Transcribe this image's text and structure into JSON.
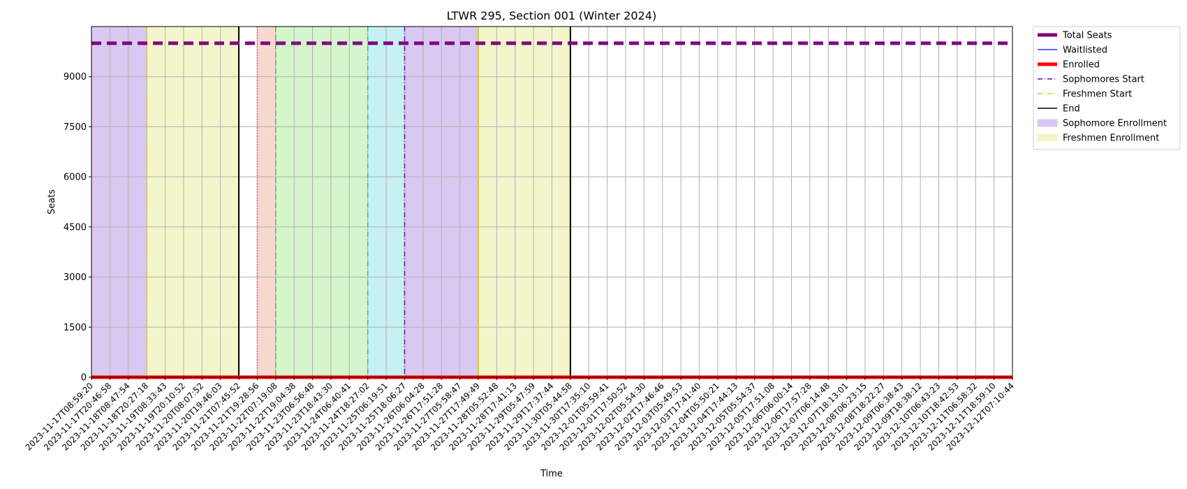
{
  "chart_data": {
    "type": "line",
    "title": "LTWR 295, Section 001 (Winter 2024)",
    "xlabel": "Time",
    "ylabel": "Seats",
    "ylim": [
      0,
      10500
    ],
    "yticks": [
      0,
      1500,
      3000,
      4500,
      6000,
      7500,
      9000
    ],
    "grid": true,
    "legend_position": "outside-right-top",
    "x": [
      "2023-11-17T08:59:20",
      "2023-11-17T20:46:58",
      "2023-11-18T08:47:54",
      "2023-11-18T20:27:18",
      "2023-11-19T08:33:43",
      "2023-11-19T20:10:52",
      "2023-11-20T08:07:52",
      "2023-11-20T19:46:03",
      "2023-11-21T07:45:52",
      "2023-11-21T19:28:56",
      "2023-11-22T07:19:08",
      "2023-11-22T19:04:38",
      "2023-11-23T06:56:48",
      "2023-11-23T18:43:30",
      "2023-11-24T06:40:41",
      "2023-11-24T18:27:02",
      "2023-11-25T06:19:51",
      "2023-11-25T18:06:27",
      "2023-11-26T06:04:28",
      "2023-11-26T17:51:28",
      "2023-11-27T05:58:47",
      "2023-11-27T17:49:49",
      "2023-11-28T05:52:48",
      "2023-11-28T17:41:13",
      "2023-11-29T05:47:59",
      "2023-11-29T17:37:44",
      "2023-11-30T05:44:58",
      "2023-11-30T17:35:10",
      "2023-12-01T05:59:41",
      "2023-12-01T17:50:52",
      "2023-12-02T05:54:30",
      "2023-12-02T17:46:46",
      "2023-12-03T05:49:53",
      "2023-12-03T17:41:40",
      "2023-12-04T05:50:21",
      "2023-12-04T17:44:13",
      "2023-12-05T05:54:37",
      "2023-12-05T17:51:08",
      "2023-12-06T06:00:14",
      "2023-12-06T17:57:28",
      "2023-12-07T06:14:48",
      "2023-12-07T18:13:01",
      "2023-12-08T06:23:15",
      "2023-12-08T18:22:27",
      "2023-12-09T06:38:43",
      "2023-12-09T18:38:12",
      "2023-12-10T06:43:23",
      "2023-12-10T18:42:53",
      "2023-12-11T06:58:32",
      "2023-12-11T18:59:10",
      "2023-12-12T07:10:44"
    ],
    "series": [
      {
        "name": "Total Seats",
        "color": "#800080",
        "style": "dashed-thick",
        "value": 10000
      },
      {
        "name": "Waitlisted",
        "color": "#3333ff",
        "style": "solid",
        "value": 0
      },
      {
        "name": "Enrolled",
        "color": "#ff0000",
        "style": "solid-thick",
        "value": 0
      }
    ],
    "start_lines": [
      {
        "name": "Sophomores Start",
        "color": "#6a0dad",
        "style": "dashdot"
      },
      {
        "name": "Freshmen Start",
        "color": "#cccc33",
        "style": "dashdot"
      },
      {
        "name": "End",
        "color": "#000000",
        "style": "solid"
      }
    ],
    "bands": [
      {
        "name": "Sophomore Enrollment",
        "color": "#d9c8f0",
        "from": "2023-11-17T08:59:20",
        "to": "2023-11-18T20:27:18"
      },
      {
        "name": "Freshmen Enrollment",
        "color": "#f5f5cc",
        "from": "2023-11-18T20:27:18",
        "to": "2023-11-21T07:45:52"
      },
      {
        "name": "",
        "color": "#f7d9d0",
        "from": "2023-11-21T19:28:56",
        "to": "2023-11-22T07:19:08"
      },
      {
        "name": "",
        "color": "#d5f5cc",
        "from": "2023-11-22T07:19:08",
        "to": "2023-11-24T18:27:02"
      },
      {
        "name": "",
        "color": "#c7f0f2",
        "from": "2023-11-24T18:27:02",
        "to": "2023-11-25T18:06:27"
      },
      {
        "name": "",
        "color": "#d9c8f0",
        "from": "2023-11-25T18:06:27",
        "to": "2023-11-27T17:49:49"
      },
      {
        "name": "",
        "color": "#f5f5cc",
        "from": "2023-11-27T17:49:49",
        "to": "2023-11-30T05:44:58"
      }
    ],
    "vlines": [
      {
        "at": "2023-11-18T20:27:18",
        "color": "#cccc33",
        "style": "dashdot"
      },
      {
        "at": "2023-11-21T07:45:52",
        "color": "#000000",
        "style": "solid"
      },
      {
        "at": "2023-11-21T19:28:56",
        "color": "#ff6666",
        "style": "dotted"
      },
      {
        "at": "2023-11-22T07:19:08",
        "color": "#33cc33",
        "style": "dashed"
      },
      {
        "at": "2023-11-24T18:27:02",
        "color": "#17becf",
        "style": "dashdot"
      },
      {
        "at": "2023-11-25T18:06:27",
        "color": "#6a0dad",
        "style": "dashdot"
      },
      {
        "at": "2023-11-27T17:49:49",
        "color": "#cccc33",
        "style": "solid"
      },
      {
        "at": "2023-11-30T05:44:58",
        "color": "#000000",
        "style": "solid"
      }
    ],
    "legend": [
      {
        "label": "Total Seats",
        "kind": "line",
        "color": "#800080",
        "style": "solid-thick"
      },
      {
        "label": "Waitlisted",
        "kind": "line",
        "color": "#3333ff",
        "style": "solid"
      },
      {
        "label": "Enrolled",
        "kind": "line",
        "color": "#ff0000",
        "style": "solid-thick"
      },
      {
        "label": "Sophomores Start",
        "kind": "line",
        "color": "#6a0dad",
        "style": "dashdot"
      },
      {
        "label": "Freshmen Start",
        "kind": "line",
        "color": "#cccc33",
        "style": "dashdot"
      },
      {
        "label": "End",
        "kind": "line",
        "color": "#000000",
        "style": "solid"
      },
      {
        "label": "Sophomore Enrollment",
        "kind": "patch",
        "color": "#d9c8f0"
      },
      {
        "label": "Freshmen Enrollment",
        "kind": "patch",
        "color": "#f5f5cc"
      }
    ]
  }
}
